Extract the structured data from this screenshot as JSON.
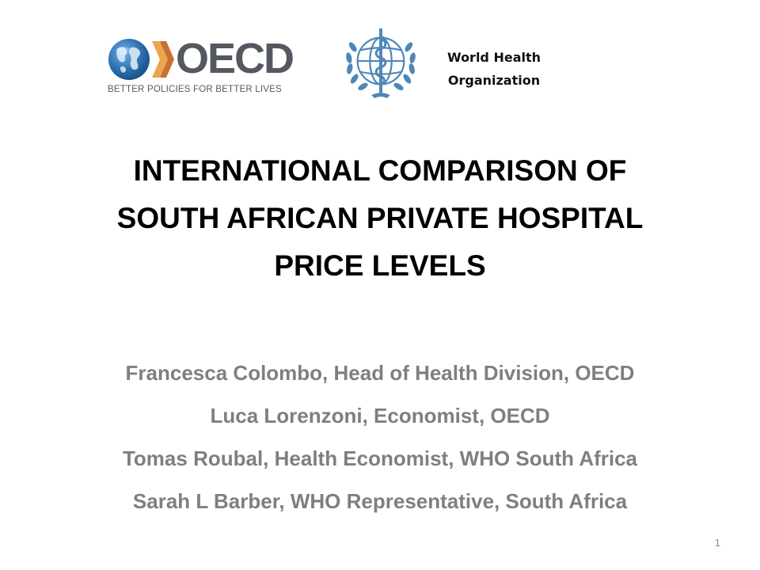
{
  "logos": {
    "oecd": {
      "wordmark": "OECD",
      "tagline": "BETTER POLICIES FOR BETTER LIVES",
      "colors": {
        "globe": "#2c6fb0",
        "chevron_light": "#e9a64f",
        "chevron_dark": "#c8702c",
        "text": "#545860"
      }
    },
    "who": {
      "name_lines": [
        "World Health",
        "Organization"
      ],
      "color": "#4f86b8"
    }
  },
  "title_lines": [
    "INTERNATIONAL COMPARISON OF",
    "SOUTH AFRICAN PRIVATE HOSPITAL",
    "PRICE LEVELS"
  ],
  "authors": [
    "Francesca Colombo, Head of Health Division, OECD",
    "Luca Lorenzoni, Economist, OECD",
    "Tomas Roubal, Health Economist, WHO South Africa",
    "Sarah L Barber, WHO Representative, South Africa"
  ],
  "page_number": "1"
}
